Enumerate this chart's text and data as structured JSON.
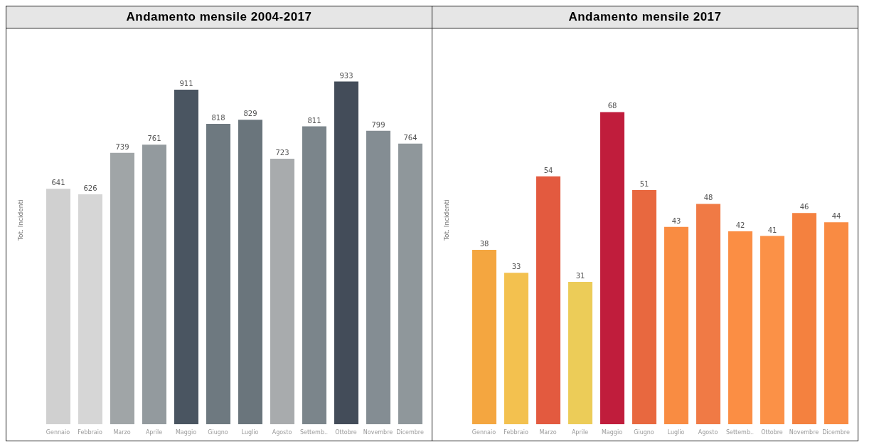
{
  "chart_data": [
    {
      "type": "bar",
      "title": "Andamento mensile 2004-2017",
      "ylabel": "Tot. Incidenti",
      "categories": [
        "Gennaio",
        "Febbraio",
        "Marzo",
        "Aprile",
        "Maggio",
        "Giugno",
        "Luglio",
        "Agosto",
        "Settemb..",
        "Ottobre",
        "Novembre",
        "Dicembre"
      ],
      "values": [
        641,
        626,
        739,
        761,
        911,
        818,
        829,
        723,
        811,
        933,
        799,
        764
      ],
      "colors": [
        "#d0d0d0",
        "#d6d6d6",
        "#a0a5a7",
        "#939a9e",
        "#4a5561",
        "#6e7980",
        "#6a757c",
        "#a8abad",
        "#7b858b",
        "#434c59",
        "#848d93",
        "#8f979b"
      ],
      "data_labels": true,
      "tick_labels": "x",
      "grid": false
    },
    {
      "type": "bar",
      "title": "Andamento mensile 2017",
      "ylabel": "Tot. Incidenti",
      "categories": [
        "Gennaio",
        "Febbraio",
        "Marzo",
        "Aprile",
        "Maggio",
        "Giugno",
        "Luglio",
        "Agosto",
        "Settemb..",
        "Ottobre",
        "Novembre",
        "Dicembre"
      ],
      "values": [
        38,
        33,
        54,
        31,
        68,
        51,
        43,
        48,
        42,
        41,
        46,
        44
      ],
      "colors": [
        "#f4a640",
        "#f3c14f",
        "#e35a3f",
        "#eccc58",
        "#c01d3c",
        "#e8683f",
        "#f98c42",
        "#f07a45",
        "#fb8e44",
        "#fb9147",
        "#f4813f",
        "#f98b43"
      ],
      "data_labels": true,
      "tick_labels": "x",
      "grid": false
    }
  ]
}
